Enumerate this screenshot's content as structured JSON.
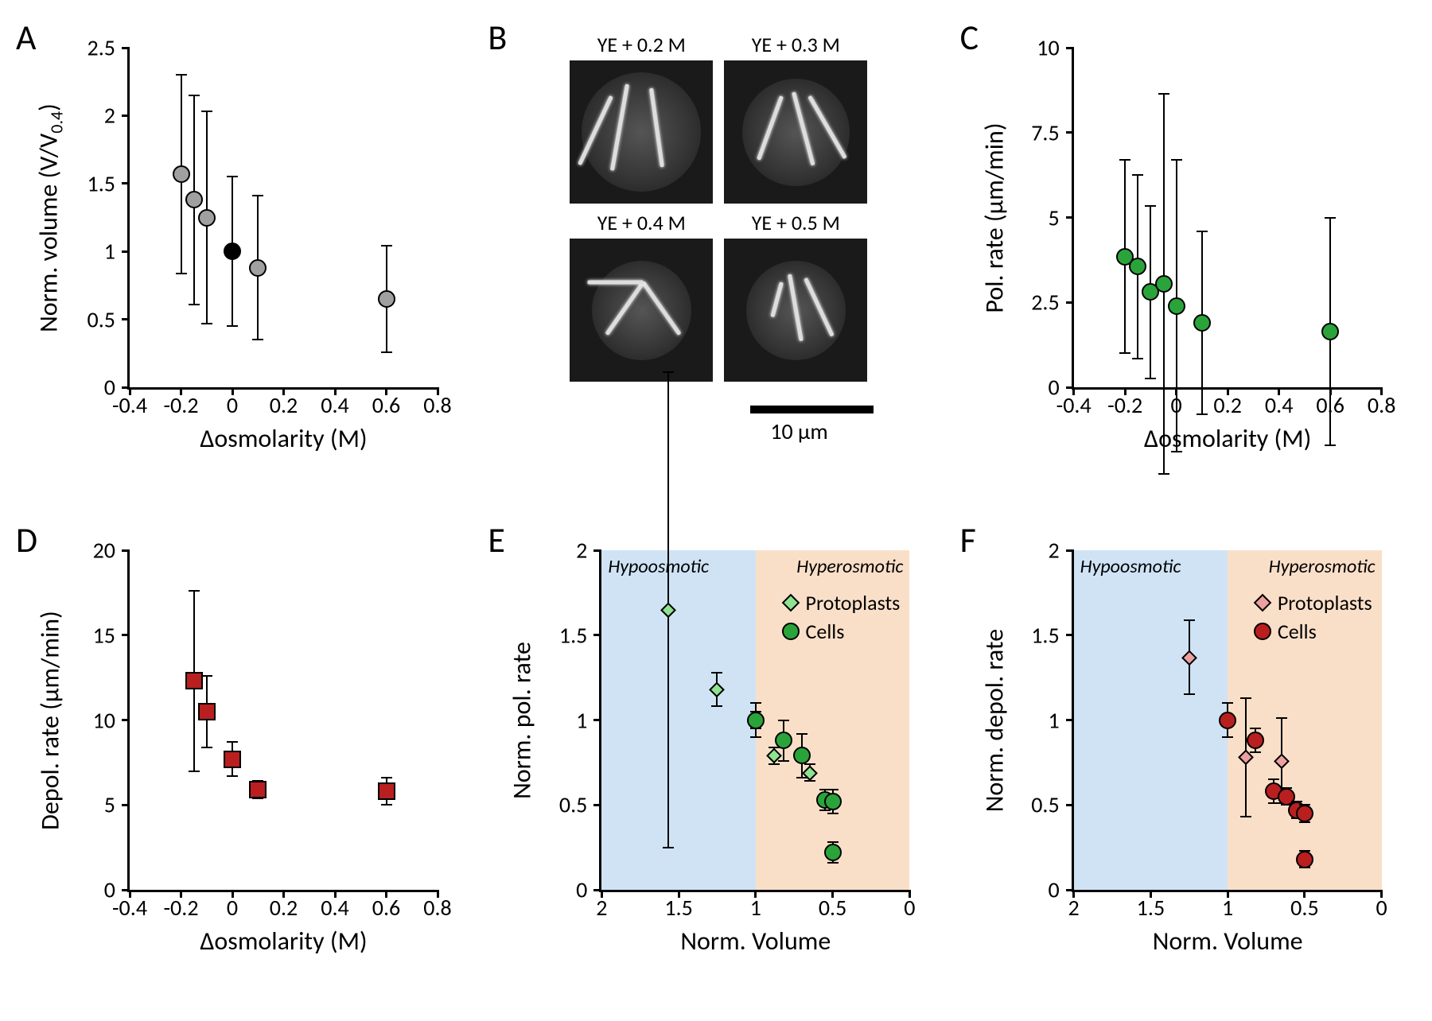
{
  "figure": {
    "panels": {
      "A": {
        "label": "A",
        "type": "scatter",
        "xlabel": "Δosmolarity (M)",
        "ylabel": "Norm. volume (V/V₀.₄)",
        "xlim": [
          -0.4,
          0.8
        ],
        "ylim": [
          0,
          2.5
        ],
        "xticks": [
          -0.4,
          -0.2,
          0,
          0.2,
          0.4,
          0.6,
          0.8
        ],
        "yticks": [
          0,
          0.5,
          1,
          1.5,
          2,
          2.5
        ],
        "label_fontsize": 32,
        "tick_fontsize": 28,
        "marker_shape": "circle",
        "marker_size": 22,
        "marker_stroke": "#000000",
        "colors": {
          "std": "#a0a0a0",
          "ref": "#000000"
        },
        "points": [
          {
            "x": -0.2,
            "y": 1.57,
            "err": 0.73,
            "color": "std"
          },
          {
            "x": -0.15,
            "y": 1.38,
            "err": 0.77,
            "color": "std"
          },
          {
            "x": -0.1,
            "y": 1.25,
            "err": 0.78,
            "color": "std"
          },
          {
            "x": 0.0,
            "y": 1.0,
            "err": 0.55,
            "color": "ref"
          },
          {
            "x": 0.1,
            "y": 0.88,
            "err": 0.53,
            "color": "std"
          },
          {
            "x": 0.6,
            "y": 0.65,
            "err": 0.39,
            "color": "std"
          }
        ]
      },
      "B": {
        "label": "B",
        "type": "microscopy",
        "images": [
          {
            "title": "YE + 0.2 M"
          },
          {
            "title": "YE + 0.3 M"
          },
          {
            "title": "YE + 0.4 M"
          },
          {
            "title": "YE + 0.5 M"
          }
        ],
        "scalebar": {
          "length_um": 10,
          "label": "10 μm"
        }
      },
      "C": {
        "label": "C",
        "type": "scatter",
        "xlabel": "Δosmolarity (M)",
        "ylabel": "Pol. rate (μm/min)",
        "xlim": [
          -0.4,
          0.8
        ],
        "ylim": [
          0,
          10
        ],
        "xticks": [
          -0.4,
          -0.2,
          0,
          0.2,
          0.4,
          0.6,
          0.8
        ],
        "yticks": [
          0,
          2.5,
          5,
          7.5,
          10
        ],
        "marker_shape": "circle",
        "marker_size": 22,
        "marker_color": "#2aa43a",
        "points": [
          {
            "x": -0.2,
            "y": 3.85,
            "err": 2.85
          },
          {
            "x": -0.15,
            "y": 3.55,
            "err": 2.7
          },
          {
            "x": -0.1,
            "y": 2.8,
            "err": 2.55
          },
          {
            "x": -0.05,
            "y": 3.05,
            "err": 5.6
          },
          {
            "x": 0.0,
            "y": 2.4,
            "err": 4.3
          },
          {
            "x": 0.1,
            "y": 1.9,
            "err": 2.7
          },
          {
            "x": 0.6,
            "y": 1.65,
            "err": 3.35
          }
        ]
      },
      "D": {
        "label": "D",
        "type": "scatter",
        "xlabel": "Δosmolarity (M)",
        "ylabel": "Depol. rate (μm/min)",
        "xlim": [
          -0.4,
          0.8
        ],
        "ylim": [
          0,
          20
        ],
        "xticks": [
          -0.4,
          -0.2,
          0,
          0.2,
          0.4,
          0.6,
          0.8
        ],
        "yticks": [
          0,
          5,
          10,
          15,
          20
        ],
        "marker_shape": "square",
        "marker_size": 22,
        "marker_color": "#b91f1f",
        "points": [
          {
            "x": -0.15,
            "y": 12.3,
            "err": 5.3
          },
          {
            "x": -0.1,
            "y": 10.5,
            "err": 2.1
          },
          {
            "x": 0.0,
            "y": 7.7,
            "err": 1.0
          },
          {
            "x": 0.1,
            "y": 5.9,
            "err": 0.5
          },
          {
            "x": 0.6,
            "y": 5.8,
            "err": 0.8
          }
        ]
      },
      "E": {
        "label": "E",
        "type": "scatter",
        "xlabel": "Norm. Volume",
        "ylabel": "Norm. pol. rate",
        "xlim": [
          2,
          0
        ],
        "ylim": [
          0,
          2
        ],
        "xticks": [
          2,
          1.5,
          1,
          0.5,
          0
        ],
        "yticks": [
          0,
          0.5,
          1,
          1.5,
          2
        ],
        "x_reversed": true,
        "shade_split_x": 1,
        "shade_left_color": "#cfe3f5",
        "shade_right_color": "#fadfc8",
        "shade_labels": {
          "left": "Hypoosmotic",
          "right": "Hyperosmotic"
        },
        "legend": [
          {
            "label": "Protoplasts",
            "shape": "diamond",
            "color": "#8fe28f"
          },
          {
            "label": "Cells",
            "shape": "circle",
            "color": "#2aa43a"
          }
        ],
        "series": [
          {
            "shape": "diamond",
            "color": "#8fe28f",
            "size": 18,
            "points": [
              {
                "x": 1.57,
                "y": 1.65,
                "err": 1.4
              },
              {
                "x": 1.25,
                "y": 1.18,
                "err": 0.1
              },
              {
                "x": 1.0,
                "y": 1.0,
                "err": 0.05
              },
              {
                "x": 0.88,
                "y": 0.79,
                "err": 0.05
              },
              {
                "x": 0.65,
                "y": 0.69,
                "err": 0.05
              }
            ]
          },
          {
            "shape": "circle",
            "color": "#2aa43a",
            "size": 22,
            "points": [
              {
                "x": 1.0,
                "y": 1.0,
                "err": 0.1
              },
              {
                "x": 0.82,
                "y": 0.88,
                "err": 0.12
              },
              {
                "x": 0.7,
                "y": 0.79,
                "err": 0.13
              },
              {
                "x": 0.55,
                "y": 0.53,
                "err": 0.06
              },
              {
                "x": 0.5,
                "y": 0.52,
                "err": 0.07
              },
              {
                "x": 0.5,
                "y": 0.22,
                "err": 0.06
              }
            ]
          }
        ]
      },
      "F": {
        "label": "F",
        "type": "scatter",
        "xlabel": "Norm. Volume",
        "ylabel": "Norm. depol. rate",
        "xlim": [
          2,
          0
        ],
        "ylim": [
          0,
          2
        ],
        "xticks": [
          2,
          1.5,
          1,
          0.5,
          0
        ],
        "yticks": [
          0,
          0.5,
          1,
          1.5,
          2
        ],
        "x_reversed": true,
        "shade_split_x": 1,
        "shade_left_color": "#cfe3f5",
        "shade_right_color": "#fadfc8",
        "shade_labels": {
          "left": "Hypoosmotic",
          "right": "Hyperosmotic"
        },
        "legend": [
          {
            "label": "Protoplasts",
            "shape": "diamond",
            "color": "#eda0a0"
          },
          {
            "label": "Cells",
            "shape": "circle",
            "color": "#b91f1f"
          }
        ],
        "series": [
          {
            "shape": "diamond",
            "color": "#eda0a0",
            "size": 18,
            "points": [
              {
                "x": 1.25,
                "y": 1.37,
                "err": 0.22
              },
              {
                "x": 0.88,
                "y": 0.78,
                "err": 0.35
              },
              {
                "x": 0.65,
                "y": 0.76,
                "err": 0.25
              }
            ]
          },
          {
            "shape": "circle",
            "color": "#b91f1f",
            "size": 22,
            "points": [
              {
                "x": 1.0,
                "y": 1.0,
                "err": 0.1
              },
              {
                "x": 0.82,
                "y": 0.88,
                "err": 0.07
              },
              {
                "x": 0.7,
                "y": 0.58,
                "err": 0.07
              },
              {
                "x": 0.62,
                "y": 0.55,
                "err": 0.05
              },
              {
                "x": 0.55,
                "y": 0.47,
                "err": 0.05
              },
              {
                "x": 0.5,
                "y": 0.45,
                "err": 0.05
              },
              {
                "x": 0.5,
                "y": 0.18,
                "err": 0.05
              }
            ]
          }
        ]
      }
    }
  }
}
